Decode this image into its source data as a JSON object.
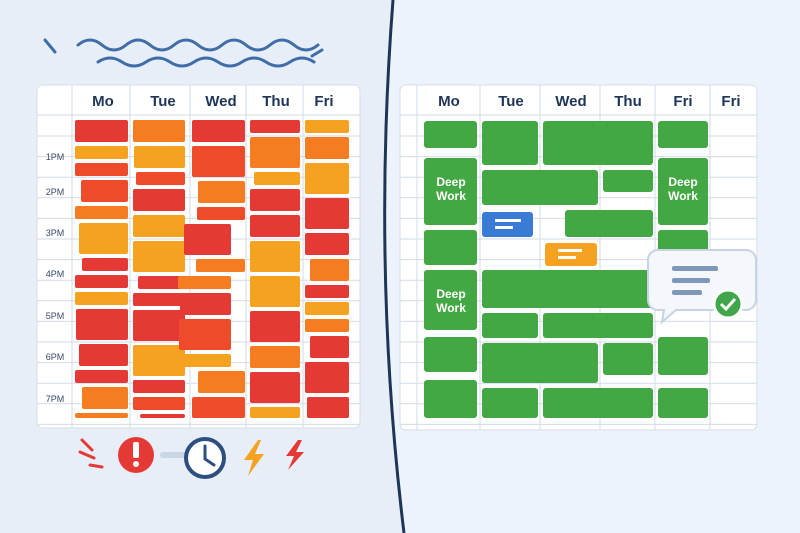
{
  "left_calendar": {
    "days": [
      "Mo",
      "Tue",
      "Wed",
      "Thu",
      "Fri"
    ],
    "times": [
      "1PM",
      "2PM",
      "3PM",
      "4PM",
      "5PM",
      "6PM",
      "7PM"
    ]
  },
  "right_calendar": {
    "days": [
      "Mo",
      "Tue",
      "Wed",
      "Thu",
      "Fri",
      "Fri"
    ],
    "blocks": [
      {
        "label": "Deep Work"
      },
      {
        "label": "Deep Work"
      },
      {
        "label": "Deep Work"
      }
    ]
  }
}
